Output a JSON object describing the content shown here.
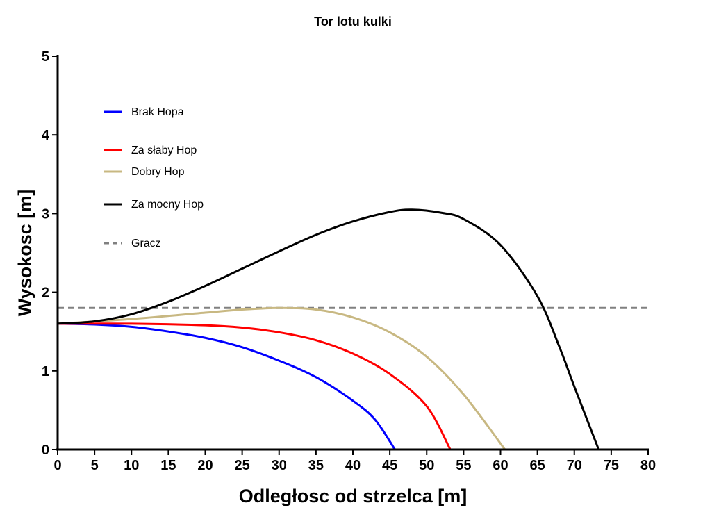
{
  "chart_data": {
    "type": "line",
    "title": "Tor lotu kulki",
    "xlabel": "Odległosc od strzelca [m]",
    "ylabel": "Wysokosc [m]",
    "xlim": [
      0,
      80
    ],
    "ylim": [
      0,
      5
    ],
    "xticks": [
      "0",
      "5",
      "10",
      "15",
      "20",
      "25",
      "30",
      "35",
      "40",
      "45",
      "50",
      "55",
      "60",
      "65",
      "70",
      "75",
      "80"
    ],
    "yticks": [
      "0",
      "1",
      "2",
      "3",
      "4",
      "5"
    ],
    "grid": false,
    "legend_position": "top-left",
    "series": [
      {
        "name": "Brak Hopa",
        "color": "#0000ff",
        "dashed": false,
        "x": [
          0,
          5,
          10,
          15,
          20,
          25,
          30,
          35,
          40,
          43,
          45.7
        ],
        "y": [
          1.6,
          1.59,
          1.56,
          1.5,
          1.42,
          1.3,
          1.13,
          0.92,
          0.62,
          0.38,
          0
        ]
      },
      {
        "name": "Za słaby Hop",
        "color": "#ff0000",
        "dashed": false,
        "x": [
          0,
          10,
          20,
          25,
          30,
          35,
          40,
          45,
          50,
          53.2
        ],
        "y": [
          1.6,
          1.6,
          1.58,
          1.55,
          1.49,
          1.39,
          1.22,
          0.96,
          0.55,
          0
        ]
      },
      {
        "name": "Dobry Hop",
        "color": "#c8b882",
        "dashed": false,
        "x": [
          0,
          10,
          20,
          25,
          30,
          35,
          40,
          45,
          50,
          55,
          60.6
        ],
        "y": [
          1.6,
          1.66,
          1.74,
          1.78,
          1.8,
          1.78,
          1.68,
          1.49,
          1.18,
          0.7,
          0
        ]
      },
      {
        "name": "Za mocny Hop",
        "color": "#000000",
        "dashed": false,
        "x": [
          0,
          5,
          10,
          15,
          20,
          25,
          30,
          35,
          40,
          45,
          48,
          52,
          55,
          60,
          65,
          68,
          70,
          73.3
        ],
        "y": [
          1.6,
          1.63,
          1.72,
          1.88,
          2.08,
          2.3,
          2.52,
          2.73,
          2.9,
          3.02,
          3.05,
          3.01,
          2.93,
          2.6,
          1.95,
          1.3,
          0.8,
          0
        ]
      },
      {
        "name": "Gracz",
        "color": "#808080",
        "dashed": true,
        "x": [
          0,
          80
        ],
        "y": [
          1.8,
          1.8
        ]
      }
    ]
  }
}
